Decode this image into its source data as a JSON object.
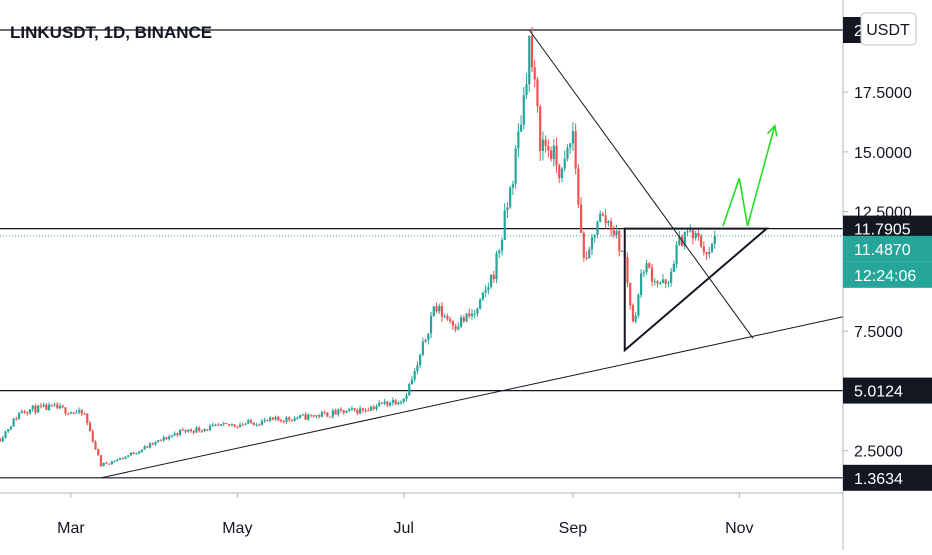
{
  "symbol_title": "LINKUSDT, 1D, BINANCE",
  "currency_badge": "USDT",
  "colors": {
    "up": "#26a69a",
    "down": "#ef5350",
    "last_price_label": "#26a69a",
    "level_label": "#131722",
    "projection_arrow": "#22dd22",
    "current_price_line": "#26a69a"
  },
  "chart_data": {
    "type": "candlestick",
    "title": "LINKUSDT, 1D, BINANCE",
    "xlabel": "",
    "ylabel": "",
    "x_ticks": [
      {
        "label": "Mar",
        "date": "2020-03-01"
      },
      {
        "label": "May",
        "date": "2020-05-01"
      },
      {
        "label": "Jul",
        "date": "2020-07-01"
      },
      {
        "label": "Sep",
        "date": "2020-09-01"
      },
      {
        "label": "Nov",
        "date": "2020-11-01"
      }
    ],
    "x_range": [
      "2020-02-04",
      "2020-12-09"
    ],
    "y_ticks": [
      2.5,
      7.5,
      12.5,
      15,
      17.5
    ],
    "y_tick_labels": [
      "2.5000",
      "7.5000",
      "12.5000",
      "15.0000",
      "17.5000"
    ],
    "ylim": [
      -0.5,
      20.8
    ],
    "grid": false,
    "legend": "none",
    "price_labels": [
      {
        "label": "11.7905",
        "value": 11.7905,
        "kind": "level"
      },
      {
        "label": "11.4870",
        "value": 11.487,
        "kind": "last_price"
      },
      {
        "label": "12:24:06",
        "kind": "countdown"
      },
      {
        "label": "5.0124",
        "value": 5.0124,
        "kind": "level"
      },
      {
        "label": "1.3634",
        "value": 1.3634,
        "kind": "level"
      },
      {
        "label": "2",
        "value": 20.1,
        "kind": "level_clipped"
      }
    ],
    "horizontal_levels": [
      20.1,
      11.7905,
      5.0124,
      1.3634
    ],
    "current_price": 11.487,
    "anchors": [
      {
        "date": "2020-02-04",
        "close": 3.0
      },
      {
        "date": "2020-02-12",
        "close": 4.2
      },
      {
        "date": "2020-02-24",
        "close": 4.3
      },
      {
        "date": "2020-03-06",
        "close": 4.0
      },
      {
        "date": "2020-03-12",
        "close": 1.9
      },
      {
        "date": "2020-03-20",
        "close": 2.2
      },
      {
        "date": "2020-04-10",
        "close": 3.3
      },
      {
        "date": "2020-05-01",
        "close": 3.6
      },
      {
        "date": "2020-05-25",
        "close": 3.9
      },
      {
        "date": "2020-06-15",
        "close": 4.2
      },
      {
        "date": "2020-07-01",
        "close": 4.7
      },
      {
        "date": "2020-07-06",
        "close": 6.0
      },
      {
        "date": "2020-07-12",
        "close": 8.5
      },
      {
        "date": "2020-07-20",
        "close": 7.8
      },
      {
        "date": "2020-07-28",
        "close": 8.3
      },
      {
        "date": "2020-08-03",
        "close": 10.0
      },
      {
        "date": "2020-08-06",
        "close": 11.5
      },
      {
        "date": "2020-08-10",
        "close": 14.0
      },
      {
        "date": "2020-08-14",
        "close": 17.3
      },
      {
        "date": "2020-08-16",
        "close": 19.6
      },
      {
        "date": "2020-08-20",
        "close": 15.5
      },
      {
        "date": "2020-08-24",
        "close": 15.0
      },
      {
        "date": "2020-08-28",
        "close": 14.0
      },
      {
        "date": "2020-09-01",
        "close": 15.8
      },
      {
        "date": "2020-09-04",
        "close": 11.5
      },
      {
        "date": "2020-09-06",
        "close": 10.2
      },
      {
        "date": "2020-09-10",
        "close": 12.3
      },
      {
        "date": "2020-09-15",
        "close": 12.0
      },
      {
        "date": "2020-09-20",
        "close": 10.5
      },
      {
        "date": "2020-09-23",
        "close": 7.8
      },
      {
        "date": "2020-09-27",
        "close": 10.3
      },
      {
        "date": "2020-10-02",
        "close": 9.6
      },
      {
        "date": "2020-10-06",
        "close": 9.3
      },
      {
        "date": "2020-10-08",
        "close": 10.6
      },
      {
        "date": "2020-10-12",
        "close": 11.7
      },
      {
        "date": "2020-10-18",
        "close": 11.2
      },
      {
        "date": "2020-10-21",
        "close": 10.6
      },
      {
        "date": "2020-10-23",
        "close": 11.487
      }
    ],
    "drawings": [
      {
        "name": "descending-trendline",
        "points": [
          {
            "date": "2020-08-16",
            "value": 20.1
          },
          {
            "date": "2020-11-06",
            "value": 7.2
          }
        ]
      },
      {
        "name": "rising-trendline",
        "points": [
          {
            "date": "2020-03-12",
            "value": 1.3634
          },
          {
            "date": "2020-12-09",
            "value": 8.1
          }
        ]
      },
      {
        "name": "triangle",
        "points": [
          {
            "date": "2020-09-20",
            "value": 11.79
          },
          {
            "date": "2020-11-11",
            "value": 11.79
          },
          {
            "date": "2020-09-20",
            "value": 6.7
          }
        ]
      },
      {
        "name": "projection-arrow",
        "points": [
          {
            "date": "2020-10-26",
            "value": 11.9
          },
          {
            "date": "2020-11-01",
            "value": 13.9
          },
          {
            "date": "2020-11-04",
            "value": 11.9
          },
          {
            "date": "2020-11-14",
            "value": 16.1
          }
        ]
      }
    ]
  }
}
